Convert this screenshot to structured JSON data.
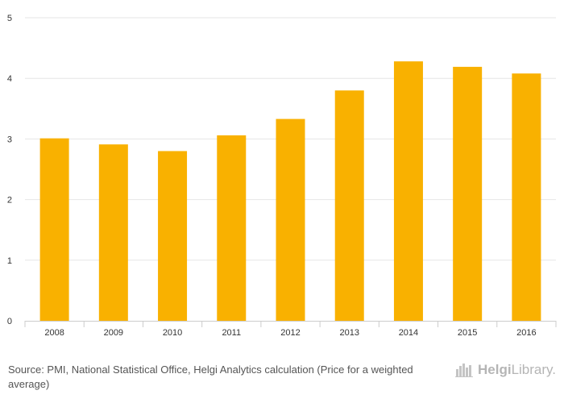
{
  "chart_data": {
    "type": "bar",
    "title": "",
    "xlabel": "",
    "ylabel": "",
    "categories": [
      "2008",
      "2009",
      "2010",
      "2011",
      "2012",
      "2013",
      "2014",
      "2015",
      "2016"
    ],
    "values": [
      3.01,
      2.91,
      2.8,
      3.06,
      3.33,
      3.8,
      4.28,
      4.19,
      4.08
    ],
    "ylim": [
      0,
      5
    ],
    "yticks": [
      "0",
      "1",
      "2",
      "3",
      "4",
      "5"
    ],
    "grid": true,
    "bar_color": "#f9b100"
  },
  "footer": {
    "source": "Source: PMI, National Statistical Office, Helgi Analytics calculation (Price for a weighted average)",
    "brand_bold": "Helgi",
    "brand_light": "Library."
  }
}
